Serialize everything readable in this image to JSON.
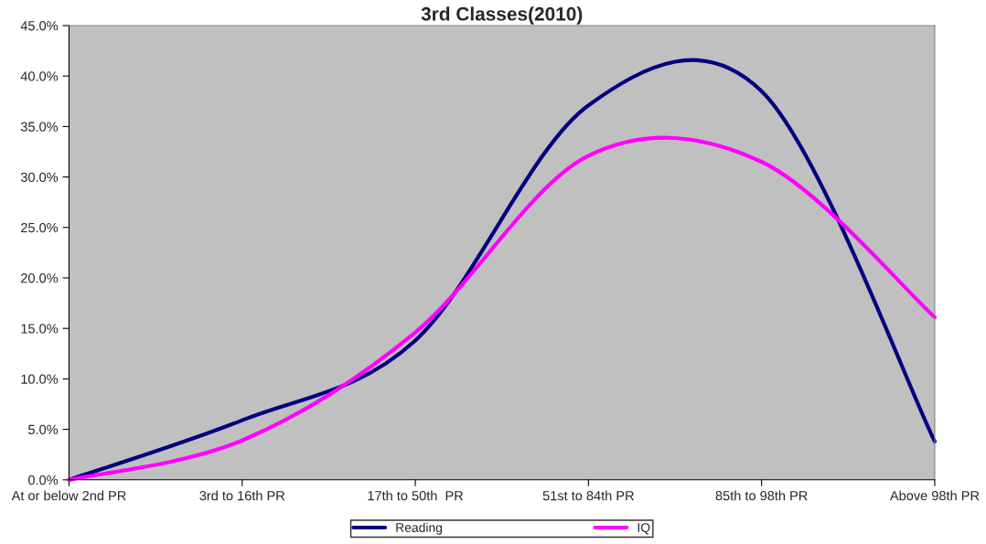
{
  "chart_data": {
    "type": "line",
    "title": "3rd Classes(2010)",
    "categories": [
      "At or below 2nd PR",
      "3rd to 16th PR",
      "17th to 50th  PR",
      "51st to 84th PR",
      "85th to 98th PR",
      "Above 98th PR"
    ],
    "series": [
      {
        "name": "Reading",
        "color": "#000080",
        "values": [
          0,
          5.9,
          13.8,
          37.1,
          38.5,
          3.8
        ]
      },
      {
        "name": "IQ",
        "color": "#ff00ff",
        "values": [
          0,
          3.9,
          14.6,
          32.1,
          31.5,
          16.1
        ]
      }
    ],
    "ylim": [
      0,
      45
    ],
    "yticks": [
      {
        "value": 0,
        "label": "0.0%"
      },
      {
        "value": 5,
        "label": "5.0%"
      },
      {
        "value": 10,
        "label": "10.0%"
      },
      {
        "value": 15,
        "label": "15.0%"
      },
      {
        "value": 20,
        "label": "20.0%"
      },
      {
        "value": 25,
        "label": "25.0%"
      },
      {
        "value": 30,
        "label": "30.0%"
      },
      {
        "value": 35,
        "label": "35.0%"
      },
      {
        "value": 40,
        "label": "40.0%"
      },
      {
        "value": 45,
        "label": "45.0%"
      }
    ],
    "grid": false,
    "legend": "bottom",
    "marker": "none",
    "line_style": "solid"
  }
}
